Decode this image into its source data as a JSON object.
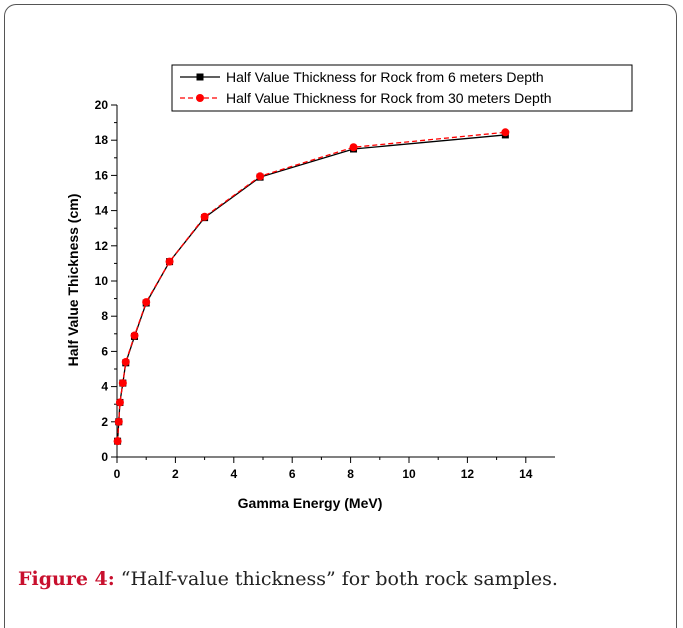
{
  "caption": {
    "label": "Figure 4:",
    "text": " “Half-value thickness” for both rock samples."
  },
  "colors": {
    "series_1": "#000000",
    "series_2": "#ff0000",
    "caption_label": "#c8102e"
  },
  "chart_data": {
    "type": "line",
    "xlabel": "Gamma Energy (MeV)",
    "ylabel": "Half Value Thickness (cm)",
    "xlim": [
      0,
      15
    ],
    "ylim": [
      0,
      20
    ],
    "xticks": [
      0,
      2,
      4,
      6,
      8,
      10,
      12,
      14
    ],
    "yticks": [
      0,
      2,
      4,
      6,
      8,
      10,
      12,
      14,
      16,
      18,
      20
    ],
    "legend_position": "top-right",
    "grid": false,
    "series": [
      {
        "name": "Half Value Thickness for Rock from 6 meters Depth",
        "marker": "square",
        "line": "solid",
        "color": "#000000",
        "x": [
          0.02,
          0.06,
          0.1,
          0.2,
          0.3,
          0.6,
          1.0,
          1.8,
          3.0,
          4.9,
          8.1,
          13.3
        ],
        "y": [
          0.9,
          2.0,
          3.1,
          4.2,
          5.35,
          6.85,
          8.75,
          11.1,
          13.6,
          15.9,
          17.5,
          18.3
        ]
      },
      {
        "name": "Half Value Thickness for Rock from 30 meters Depth",
        "marker": "circle",
        "line": "dashed",
        "color": "#ff0000",
        "x": [
          0.02,
          0.06,
          0.1,
          0.2,
          0.3,
          0.6,
          1.0,
          1.8,
          3.0,
          4.9,
          8.1,
          13.3
        ],
        "y": [
          0.9,
          2.0,
          3.1,
          4.2,
          5.4,
          6.9,
          8.8,
          11.1,
          13.65,
          15.95,
          17.6,
          18.45
        ]
      }
    ]
  }
}
